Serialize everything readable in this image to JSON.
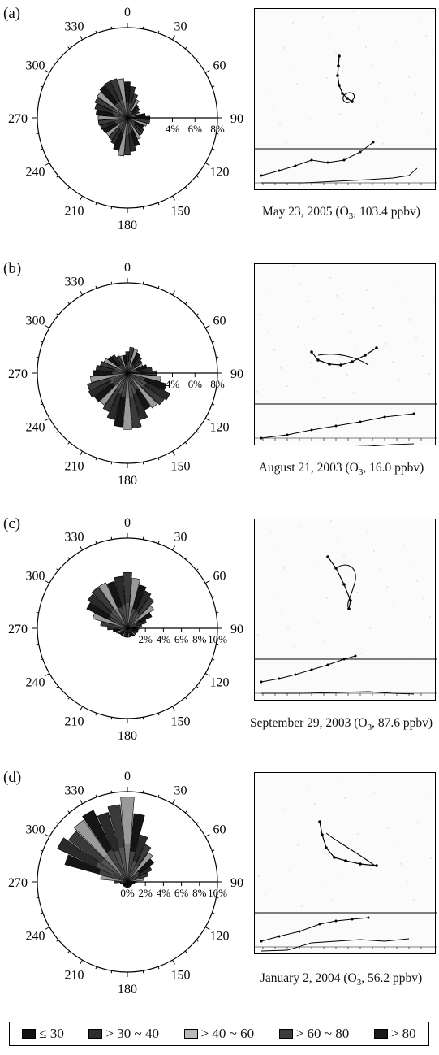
{
  "chart_data": [
    {
      "type": "polar-bar",
      "panel_label": "(a)",
      "caption": "May 23, 2005 (O3, 103.4 ppbv)",
      "caption_parts": {
        "pre": "May 23, 2005 (O",
        "sub": "3",
        "post": ", 103.4 ppbv)"
      },
      "angle_labels": [
        "0",
        "30",
        "60",
        "90",
        "120",
        "150",
        "180",
        "210",
        "240",
        "270",
        "300",
        "330"
      ],
      "radial_ticks": [
        0,
        4,
        6,
        8
      ],
      "radial_tick_labels": [
        "4%",
        "6%",
        "8%"
      ],
      "rmax": 8,
      "directions": [
        0,
        10,
        20,
        30,
        40,
        50,
        60,
        70,
        80,
        90,
        100,
        110,
        120,
        130,
        140,
        150,
        160,
        170,
        180,
        190,
        200,
        210,
        220,
        230,
        240,
        250,
        260,
        270,
        280,
        290,
        300,
        310,
        320,
        330,
        340,
        350
      ],
      "values": [
        3.2,
        2.8,
        2.2,
        1.8,
        1.4,
        1.3,
        1.1,
        1.2,
        1.6,
        2.0,
        2.0,
        1.8,
        1.6,
        1.8,
        1.9,
        2.1,
        2.6,
        3.0,
        3.3,
        3.4,
        3.0,
        2.6,
        2.4,
        2.3,
        2.4,
        2.5,
        2.6,
        2.6,
        2.8,
        3.0,
        3.2,
        3.3,
        3.5,
        3.6,
        3.6,
        3.5
      ]
    },
    {
      "type": "polar-bar",
      "panel_label": "(b)",
      "caption": "August 21, 2003 (O3, 16.0 ppbv)",
      "caption_parts": {
        "pre": "August 21, 2003 (O",
        "sub": "3",
        "post": ", 16.0 ppbv)"
      },
      "angle_labels": [
        "0",
        "",
        "60",
        "90",
        "120",
        "150",
        "180",
        "210",
        "240",
        "270",
        "300",
        "330"
      ],
      "radial_ticks": [
        0,
        4,
        6,
        8
      ],
      "radial_tick_labels": [
        "4%",
        "6%",
        "8%"
      ],
      "rmax": 8,
      "directions": [
        0,
        10,
        20,
        30,
        40,
        50,
        60,
        70,
        80,
        90,
        100,
        110,
        120,
        130,
        140,
        150,
        160,
        170,
        180,
        190,
        200,
        210,
        220,
        230,
        240,
        250,
        260,
        270,
        280,
        290,
        300,
        310,
        320,
        330,
        340,
        350
      ],
      "values": [
        1.9,
        2.3,
        2.2,
        2.0,
        1.8,
        1.6,
        1.5,
        1.8,
        2.2,
        2.6,
        3.0,
        3.6,
        4.2,
        4.0,
        3.8,
        3.6,
        4.3,
        4.9,
        5.0,
        4.8,
        4.3,
        3.8,
        3.5,
        3.6,
        3.8,
        3.7,
        3.3,
        3.0,
        2.8,
        2.5,
        2.3,
        2.1,
        2.0,
        1.7,
        1.6,
        1.6
      ]
    },
    {
      "type": "polar-bar",
      "panel_label": "(c)",
      "caption": "September 29, 2003 (O3, 87.6 ppbv)",
      "caption_parts": {
        "pre": "September 29, 2003 (O",
        "sub": "3",
        "post": ", 87.6 ppbv)"
      },
      "angle_labels": [
        "0",
        "30",
        "60",
        "90",
        "120",
        "150",
        "180",
        "210",
        "240",
        "270",
        "300",
        "330"
      ],
      "radial_ticks": [
        0,
        2,
        4,
        6,
        8,
        10
      ],
      "radial_tick_labels": [
        "2%",
        "4%",
        "6%",
        "8%",
        "10%"
      ],
      "rmax": 10,
      "directions": [
        0,
        10,
        20,
        30,
        40,
        50,
        60,
        70,
        80,
        90,
        100,
        110,
        120,
        130,
        140,
        150,
        160,
        170,
        180,
        190,
        200,
        210,
        220,
        230,
        240,
        250,
        260,
        270,
        280,
        290,
        300,
        310,
        320,
        330,
        340,
        350
      ],
      "values": [
        6.2,
        5.6,
        5.0,
        4.6,
        4.2,
        3.6,
        3.0,
        2.2,
        1.6,
        1.3,
        1.2,
        1.2,
        1.1,
        1.1,
        1.1,
        1.0,
        1.0,
        1.0,
        1.0,
        1.0,
        1.0,
        1.0,
        1.0,
        1.0,
        1.1,
        1.3,
        1.6,
        2.2,
        3.0,
        4.0,
        5.0,
        5.4,
        5.6,
        5.6,
        5.4,
        5.8
      ]
    },
    {
      "type": "polar-bar",
      "panel_label": "(d)",
      "caption": "January 2, 2004 (O3, 56.2 ppbv)",
      "caption_parts": {
        "pre": "January 2, 2004 (O",
        "sub": "3",
        "post": ", 56.2 ppbv)"
      },
      "angle_labels": [
        "0",
        "30",
        "60",
        "90",
        "120",
        "150",
        "180",
        "210",
        "240",
        "270",
        "300",
        "330"
      ],
      "radial_ticks": [
        0,
        2,
        4,
        6,
        8,
        10
      ],
      "radial_tick_labels": [
        "0%",
        "2%",
        "4%",
        "6%",
        "8%",
        "10%"
      ],
      "rmax": 10,
      "directions": [
        0,
        10,
        20,
        30,
        40,
        50,
        60,
        70,
        80,
        90,
        100,
        110,
        120,
        130,
        140,
        150,
        160,
        170,
        180,
        190,
        200,
        210,
        220,
        230,
        240,
        250,
        260,
        270,
        280,
        290,
        300,
        310,
        320,
        330,
        340,
        350
      ],
      "values": [
        9.4,
        7.6,
        5.4,
        4.6,
        4.0,
        3.6,
        3.0,
        2.4,
        1.8,
        1.0,
        0.8,
        0.6,
        0.6,
        0.6,
        0.6,
        0.6,
        0.6,
        0.6,
        0.6,
        0.6,
        0.6,
        0.6,
        0.6,
        0.6,
        0.6,
        0.6,
        0.8,
        1.4,
        3.0,
        7.2,
        8.6,
        8.0,
        8.4,
        8.8,
        8.0,
        8.6
      ]
    }
  ],
  "legend": {
    "entries": [
      {
        "label": "≤ 30",
        "color": "#111111"
      },
      {
        "label": "> 30 ~ 40",
        "color": "#2e2e2e"
      },
      {
        "label": "> 40 ~ 60",
        "color": "#b9b9b9"
      },
      {
        "label": "> 60 ~ 80",
        "color": "#3c3c3c"
      },
      {
        "label": "> 80",
        "color": "#1a1a1a"
      }
    ]
  }
}
